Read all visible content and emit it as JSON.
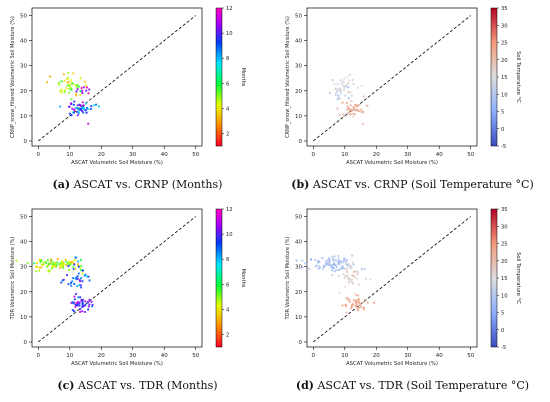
{
  "figure": {
    "panels": [
      {
        "id": "a",
        "letter": "(a)",
        "caption": "ASCAT vs. CRNP (Months)"
      },
      {
        "id": "b",
        "letter": "(b)",
        "caption": "ASCAT vs. CRNP (Soil Temperature °C)"
      },
      {
        "id": "c",
        "letter": "(c)",
        "caption": "ASCAT vs. TDR (Months)"
      },
      {
        "id": "d",
        "letter": "(d)",
        "caption": "ASCAT vs. TDR (Soil Temperature °C)"
      }
    ]
  },
  "chart_data": [
    {
      "type": "scatter",
      "title": "",
      "xlabel": "ASCAT Volumetric Soil Moisture (%)",
      "ylabel": "CRNP_snow_filtered Volumetric Soil Moisture (%)",
      "xlim": [
        -2,
        52
      ],
      "ylim": [
        -2,
        53
      ],
      "xticks": [
        0,
        10,
        20,
        30,
        40,
        50
      ],
      "yticks": [
        0,
        10,
        20,
        30,
        40,
        50
      ],
      "reference_line": {
        "style": "dashed",
        "from": [
          0,
          0
        ],
        "to": [
          50,
          50
        ]
      },
      "colorbar": {
        "label": "Months",
        "min": 1,
        "max": 12,
        "ticks": [
          2,
          4,
          6,
          8,
          10,
          12
        ],
        "colormap": "gist_rainbow"
      },
      "color_variable": "month",
      "clusters": [
        {
          "cx": 10,
          "cy": 22,
          "sx": 2.2,
          "sy": 2.5,
          "n": 45,
          "cmin": 3,
          "cmax": 6
        },
        {
          "cx": 13,
          "cy": 12.5,
          "sx": 2.2,
          "sy": 1.6,
          "n": 55,
          "cmin": 7.5,
          "cmax": 11.5
        },
        {
          "cx": 14,
          "cy": 20,
          "sx": 1.5,
          "sy": 1.5,
          "n": 10,
          "cmin": 10,
          "cmax": 12
        }
      ]
    },
    {
      "type": "scatter",
      "title": "",
      "xlabel": "ASCAT Volumetric Soil Moisture (%)",
      "ylabel": "CRNP_snow_filtered Volumetric Soil Moisture (%)",
      "xlim": [
        -2,
        52
      ],
      "ylim": [
        -2,
        53
      ],
      "xticks": [
        0,
        10,
        20,
        30,
        40,
        50
      ],
      "yticks": [
        0,
        10,
        20,
        30,
        40,
        50
      ],
      "reference_line": {
        "style": "dashed",
        "from": [
          0,
          0
        ],
        "to": [
          50,
          50
        ]
      },
      "colorbar": {
        "label": "Soil Temperature °C",
        "min": -5,
        "max": 35,
        "ticks": [
          -5,
          0,
          5,
          10,
          15,
          20,
          25,
          30,
          35
        ],
        "colormap": "coolwarm"
      },
      "color_variable": "soil_temperature",
      "clusters": [
        {
          "cx": 10,
          "cy": 22,
          "sx": 2.2,
          "sy": 2.5,
          "n": 45,
          "cmin": 8,
          "cmax": 18
        },
        {
          "cx": 13,
          "cy": 12.5,
          "sx": 2.2,
          "sy": 1.6,
          "n": 55,
          "cmin": 17,
          "cmax": 24
        }
      ]
    },
    {
      "type": "scatter",
      "title": "",
      "xlabel": "ASCAT Volumetric Soil Moisture (%)",
      "ylabel": "TDR Volumetric Soil Moisture (%)",
      "xlim": [
        -2,
        52
      ],
      "ylim": [
        -2,
        53
      ],
      "xticks": [
        0,
        10,
        20,
        30,
        40,
        50
      ],
      "yticks": [
        0,
        10,
        20,
        30,
        40,
        50
      ],
      "reference_line": {
        "style": "dashed",
        "from": [
          0,
          0
        ],
        "to": [
          50,
          50
        ]
      },
      "colorbar": {
        "label": "Months",
        "min": 1,
        "max": 12,
        "ticks": [
          2,
          4,
          6,
          8,
          10,
          12
        ],
        "colormap": "gist_rainbow"
      },
      "color_variable": "month",
      "clusters": [
        {
          "cx": 6,
          "cy": 31,
          "sx": 4.0,
          "sy": 1.4,
          "n": 90,
          "cmin": 3,
          "cmax": 6
        },
        {
          "cx": 12,
          "cy": 26,
          "sx": 2.5,
          "sy": 3.0,
          "n": 40,
          "cmin": 8,
          "cmax": 10.5
        },
        {
          "cx": 14,
          "cy": 15,
          "sx": 2.0,
          "sy": 1.6,
          "n": 45,
          "cmin": 8.5,
          "cmax": 11.5
        }
      ]
    },
    {
      "type": "scatter",
      "title": "",
      "xlabel": "ASCAT Volumetric Soil Moisture (%)",
      "ylabel": "TDR Volumetric Soil Moisture (%)",
      "xlim": [
        -2,
        52
      ],
      "ylim": [
        -2,
        53
      ],
      "xticks": [
        0,
        10,
        20,
        30,
        40,
        50
      ],
      "yticks": [
        0,
        10,
        20,
        30,
        40,
        50
      ],
      "reference_line": {
        "style": "dashed",
        "from": [
          0,
          0
        ],
        "to": [
          50,
          50
        ]
      },
      "colorbar": {
        "label": "Soil Temperature °C",
        "min": -5,
        "max": 35,
        "ticks": [
          -5,
          0,
          5,
          10,
          15,
          20,
          25,
          30,
          35
        ],
        "colormap": "coolwarm"
      },
      "color_variable": "soil_temperature",
      "clusters": [
        {
          "cx": 6,
          "cy": 31,
          "sx": 4.0,
          "sy": 1.4,
          "n": 90,
          "cmin": 6,
          "cmax": 12
        },
        {
          "cx": 12,
          "cy": 26,
          "sx": 2.5,
          "sy": 3.0,
          "n": 40,
          "cmin": 14,
          "cmax": 20
        },
        {
          "cx": 14,
          "cy": 15,
          "sx": 2.0,
          "sy": 1.6,
          "n": 45,
          "cmin": 19,
          "cmax": 25
        }
      ]
    }
  ]
}
